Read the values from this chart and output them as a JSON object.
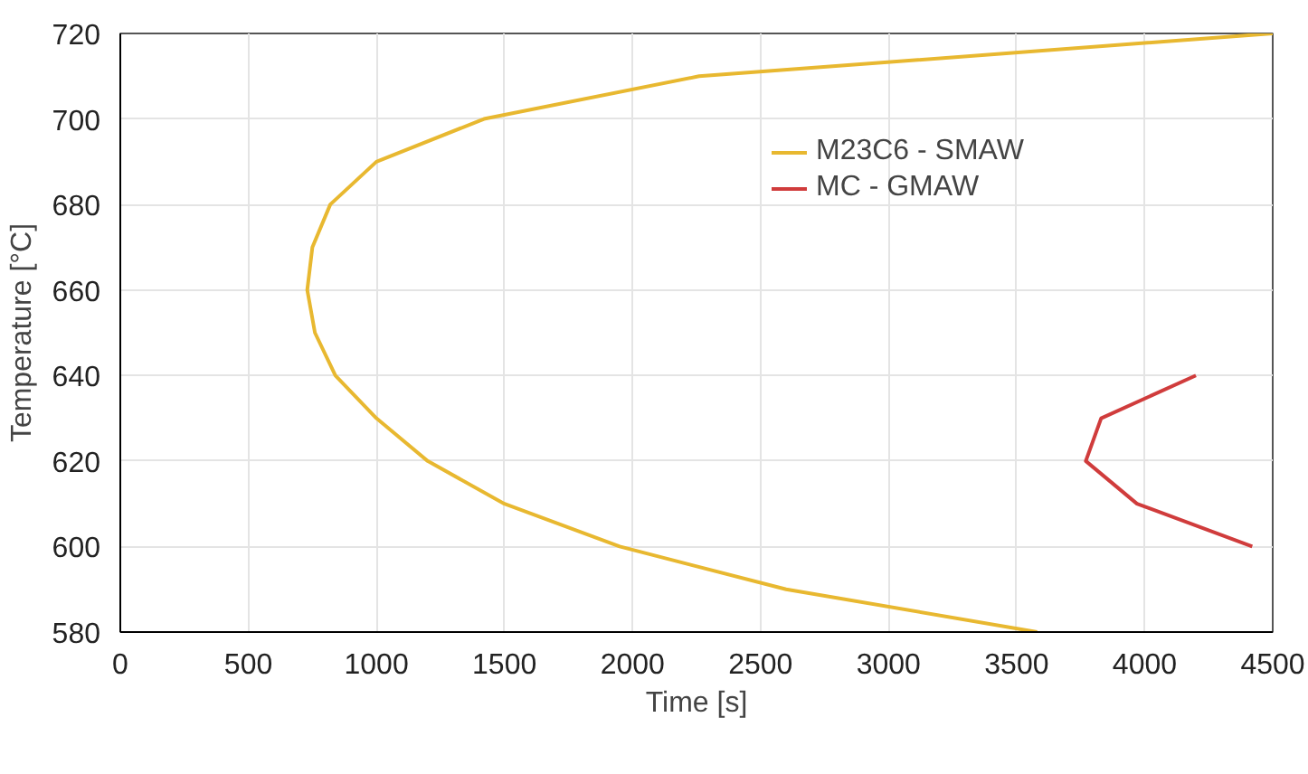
{
  "chart_data": {
    "type": "line",
    "xlabel": "Time [s]",
    "ylabel": "Temperature [°C]",
    "xlim": [
      0,
      4500
    ],
    "xticks": [
      0,
      500,
      1000,
      1500,
      2000,
      2500,
      3000,
      3500,
      4000,
      4500
    ],
    "ylim": [
      580,
      720
    ],
    "yticks": [
      580,
      600,
      620,
      640,
      660,
      680,
      700,
      720
    ],
    "grid": true,
    "legend": "top right",
    "marker": "none",
    "line_style": "solid",
    "series": [
      {
        "name": "M23C6 - SMAW",
        "color": "#e8b830",
        "x": [
          4500,
          2260,
          1420,
          1000,
          820,
          750,
          730,
          760,
          840,
          1000,
          1200,
          1500,
          1950,
          2600,
          3580
        ],
        "values": [
          720,
          710,
          700,
          690,
          680,
          670,
          660,
          650,
          640,
          630,
          620,
          610,
          600,
          590,
          580
        ]
      },
      {
        "name": "MC - GMAW",
        "color": "#d03c3c",
        "x": [
          4200,
          3830,
          3770,
          3970,
          4420
        ],
        "values": [
          640,
          630,
          620,
          610,
          600
        ]
      }
    ]
  }
}
